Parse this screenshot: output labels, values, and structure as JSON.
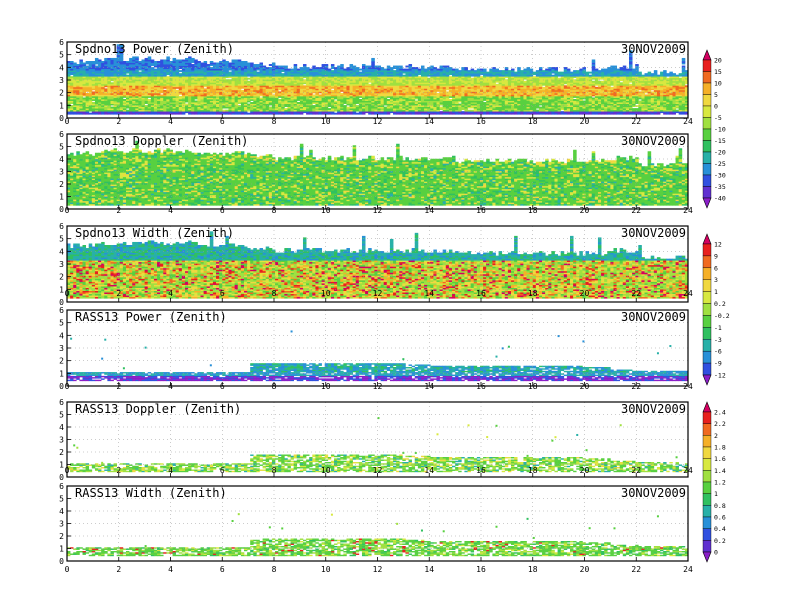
{
  "figure": {
    "date": "30NOV2009"
  },
  "chart_data": [
    {
      "type": "heatmap",
      "title": "Spdno13 Power (Zenith)",
      "date_label": "30NOV2009",
      "x_ticks": [
        0,
        2,
        4,
        6,
        8,
        10,
        12,
        14,
        16,
        18,
        20,
        22,
        24
      ],
      "y_ticks": [
        0,
        1,
        2,
        3,
        4,
        5,
        6
      ],
      "xlim": [
        0,
        24
      ],
      "ylim": [
        0,
        6
      ],
      "grid": true,
      "colorbar": "power_scale",
      "coverage": {
        "top_km_by_hour": [
          4.4,
          4.6,
          4.6,
          4.6,
          4.6,
          4.4,
          4.4,
          4.2,
          4.0,
          4.0,
          4.0,
          4.0,
          4.0,
          4.0,
          4.0,
          3.8,
          3.8,
          3.8,
          3.8,
          3.8,
          3.8,
          4.0,
          3.5,
          3.5
        ],
        "floor_km": 0.3
      }
    },
    {
      "type": "heatmap",
      "title": "Spdno13 Doppler (Zenith)",
      "date_label": "30NOV2009",
      "x_ticks": [
        0,
        2,
        4,
        6,
        8,
        10,
        12,
        14,
        16,
        18,
        20,
        22,
        24
      ],
      "y_ticks": [
        0,
        1,
        2,
        3,
        4,
        5,
        6
      ],
      "xlim": [
        0,
        24
      ],
      "ylim": [
        0,
        6
      ],
      "grid": true,
      "colorbar": "power_scale",
      "coverage": {
        "top_km_by_hour": [
          4.4,
          4.6,
          4.6,
          4.6,
          4.6,
          4.4,
          4.4,
          4.2,
          4.0,
          4.0,
          4.0,
          4.0,
          4.0,
          4.0,
          4.0,
          3.8,
          3.8,
          3.8,
          3.8,
          3.8,
          3.8,
          4.0,
          3.5,
          3.5
        ],
        "floor_km": 0.3
      }
    },
    {
      "type": "heatmap",
      "title": "Spdno13 Width (Zenith)",
      "date_label": "30NOV2009",
      "x_ticks": [
        0,
        2,
        4,
        6,
        8,
        10,
        12,
        14,
        16,
        18,
        20,
        22,
        24
      ],
      "y_ticks": [
        0,
        1,
        2,
        3,
        4,
        5,
        6
      ],
      "xlim": [
        0,
        24
      ],
      "ylim": [
        0,
        6
      ],
      "grid": true,
      "colorbar": "width_scale",
      "coverage": {
        "top_km_by_hour": [
          4.4,
          4.6,
          4.6,
          4.6,
          4.6,
          4.4,
          4.4,
          4.2,
          4.0,
          4.0,
          4.0,
          4.0,
          4.0,
          4.0,
          4.0,
          3.8,
          3.8,
          3.8,
          3.8,
          3.8,
          3.8,
          4.0,
          3.5,
          3.5
        ],
        "floor_km": 0.3
      }
    },
    {
      "type": "heatmap",
      "title": "RASS13 Power (Zenith)",
      "date_label": "30NOV2009",
      "x_ticks": [
        0,
        2,
        4,
        6,
        8,
        10,
        12,
        14,
        16,
        18,
        20,
        22,
        24
      ],
      "y_ticks": [
        0,
        1,
        2,
        3,
        4,
        5,
        6
      ],
      "xlim": [
        0,
        24
      ],
      "ylim": [
        0,
        6
      ],
      "grid": true,
      "colorbar": "width_scale",
      "coverage": {
        "bottom_km": 0.4,
        "top_km_by_hour": [
          1.0,
          1.0,
          1.0,
          1.0,
          1.0,
          1.0,
          1.0,
          1.8,
          1.8,
          1.8,
          1.8,
          1.8,
          1.8,
          1.7,
          1.6,
          1.6,
          1.6,
          1.6,
          1.6,
          1.6,
          1.5,
          1.3,
          1.2,
          1.2
        ]
      }
    },
    {
      "type": "heatmap",
      "title": "RASS13 Doppler (Zenith)",
      "date_label": "30NOV2009",
      "x_ticks": [
        0,
        2,
        4,
        6,
        8,
        10,
        12,
        14,
        16,
        18,
        20,
        22,
        24
      ],
      "y_ticks": [
        0,
        1,
        2,
        3,
        4,
        5,
        6
      ],
      "xlim": [
        0,
        24
      ],
      "ylim": [
        0,
        6
      ],
      "grid": true,
      "colorbar": "rass_scale",
      "coverage": {
        "bottom_km": 0.4,
        "top_km_by_hour": [
          1.0,
          1.0,
          1.0,
          1.0,
          1.0,
          1.0,
          1.0,
          1.8,
          1.8,
          1.8,
          1.8,
          1.8,
          1.8,
          1.7,
          1.6,
          1.6,
          1.6,
          1.6,
          1.6,
          1.6,
          1.5,
          1.3,
          1.2,
          1.2
        ]
      }
    },
    {
      "type": "heatmap",
      "title": "RASS13 Width (Zenith)",
      "date_label": "30NOV2009",
      "x_ticks": [
        0,
        2,
        4,
        6,
        8,
        10,
        12,
        14,
        16,
        18,
        20,
        22,
        24
      ],
      "y_ticks": [
        0,
        1,
        2,
        3,
        4,
        5,
        6
      ],
      "xlim": [
        0,
        24
      ],
      "ylim": [
        0,
        6
      ],
      "grid": true,
      "colorbar": "rass_scale",
      "coverage": {
        "bottom_km": 0.4,
        "top_km_by_hour": [
          1.0,
          1.0,
          1.0,
          1.0,
          1.0,
          1.0,
          1.0,
          1.8,
          1.8,
          1.8,
          1.8,
          1.8,
          1.8,
          1.7,
          1.6,
          1.6,
          1.6,
          1.6,
          1.6,
          1.6,
          1.5,
          1.3,
          1.2,
          1.2
        ]
      }
    }
  ],
  "colorbars": {
    "power_scale": {
      "labels": [
        "20",
        "15",
        "10",
        "5",
        "0",
        "-5",
        "-10",
        "-15",
        "-20",
        "-25",
        "-30",
        "-35",
        "-40"
      ],
      "colors": [
        "#d40060",
        "#e8201e",
        "#f06a20",
        "#f5b028",
        "#f0d840",
        "#d8e840",
        "#a0e040",
        "#58d040",
        "#30c060",
        "#28b0a8",
        "#2890d8",
        "#3050e0",
        "#6030d0",
        "#8a1ec8"
      ]
    },
    "width_scale": {
      "labels": [
        "12",
        "9",
        "6",
        "3",
        "1",
        "0.2",
        "-0.2",
        "-1",
        "-3",
        "-6",
        "-9",
        "-12"
      ],
      "colors": [
        "#d40060",
        "#e8201e",
        "#f06a20",
        "#f5b028",
        "#f0d840",
        "#d8e840",
        "#a0e040",
        "#58d040",
        "#30c060",
        "#28b0a8",
        "#2890d8",
        "#3050e0",
        "#8a1ec8"
      ]
    },
    "rass_scale": {
      "labels": [
        "2.4",
        "2.2",
        "2",
        "1.8",
        "1.6",
        "1.4",
        "1.2",
        "1",
        "0.8",
        "0.6",
        "0.4",
        "0.2",
        "0"
      ],
      "colors": [
        "#d40060",
        "#e8201e",
        "#f06a20",
        "#f5b028",
        "#f0d840",
        "#d8e840",
        "#a0e040",
        "#58d040",
        "#30c060",
        "#28b0a8",
        "#2890d8",
        "#3050e0",
        "#6030d0",
        "#8a1ec8"
      ]
    }
  }
}
